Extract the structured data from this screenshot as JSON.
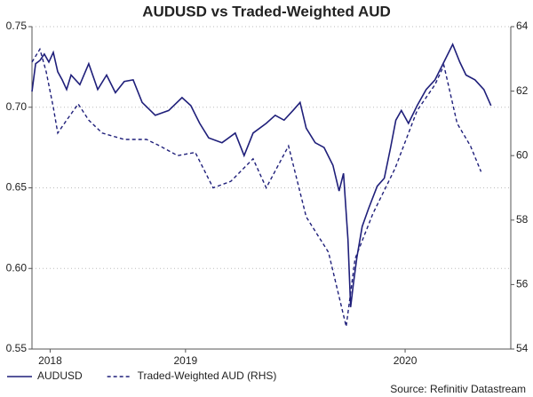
{
  "chart_data": {
    "type": "line",
    "title": "AUDUSD vs Traded-Weighted AUD",
    "source": "Source: Refinitiv Datastream",
    "xlim": [
      2017.9,
      2020.8
    ],
    "xticks": [
      {
        "value": 2018.01,
        "label": "2018"
      },
      {
        "value": 2018.83,
        "label": "2019"
      },
      {
        "value": 2020.16,
        "label": "2020"
      }
    ],
    "ylim": [
      0.55,
      0.75
    ],
    "yticks": [
      0.55,
      {
        "value": 0.6,
        "label": "0.60"
      },
      0.65,
      {
        "value": 0.7,
        "label": "0.70"
      },
      0.75
    ],
    "y2lim": [
      54,
      64
    ],
    "y2ticks": [
      54,
      56,
      58,
      60,
      62,
      64
    ],
    "grid": true,
    "legend": "bottom",
    "series": [
      {
        "name": "AUDUSD",
        "color": "#1f1f7a",
        "dash": false,
        "x": [
          2017.9,
          2017.922,
          2017.948,
          2017.975,
          2018.002,
          2018.029,
          2018.056,
          2018.083,
          2018.11,
          2018.137,
          2018.19,
          2018.244,
          2018.298,
          2018.352,
          2018.405,
          2018.459,
          2018.513,
          2018.567,
          2018.647,
          2018.728,
          2018.809,
          2018.862,
          2018.916,
          2018.97,
          2019.051,
          2019.131,
          2019.185,
          2019.239,
          2019.319,
          2019.373,
          2019.427,
          2019.481,
          2019.524,
          2019.561,
          2019.615,
          2019.669,
          2019.723,
          2019.76,
          2019.787,
          2019.814,
          2019.83,
          2019.846,
          2019.868,
          2019.9,
          2019.938,
          2019.991,
          2020.034,
          2020.072,
          2020.104,
          2020.137,
          2020.18,
          2020.233,
          2020.287,
          2020.341,
          2020.395,
          2020.448,
          2020.491,
          2020.529,
          2020.583,
          2020.637,
          2020.68
        ],
        "values": [
          0.7097,
          0.727,
          0.729,
          0.733,
          0.728,
          0.734,
          0.722,
          0.717,
          0.711,
          0.72,
          0.714,
          0.727,
          0.711,
          0.72,
          0.709,
          0.716,
          0.717,
          0.703,
          0.695,
          0.698,
          0.706,
          0.701,
          0.69,
          0.681,
          0.678,
          0.684,
          0.67,
          0.684,
          0.69,
          0.695,
          0.692,
          0.698,
          0.703,
          0.687,
          0.678,
          0.675,
          0.664,
          0.648,
          0.659,
          0.618,
          0.576,
          0.59,
          0.607,
          0.626,
          0.637,
          0.651,
          0.656,
          0.675,
          0.692,
          0.698,
          0.69,
          0.701,
          0.711,
          0.717,
          0.728,
          0.739,
          0.728,
          0.72,
          0.717,
          0.711,
          0.701
        ]
      },
      {
        "name": "Traded-Weighted AUD (RHS)",
        "color": "#1f1f7a",
        "dash": true,
        "axis": "y2",
        "x": [
          2017.9,
          2017.948,
          2017.986,
          2018.029,
          2018.056,
          2018.11,
          2018.18,
          2018.244,
          2018.325,
          2018.459,
          2018.594,
          2018.674,
          2018.782,
          2018.889,
          2018.997,
          2019.104,
          2019.239,
          2019.319,
          2019.454,
          2019.561,
          2019.696,
          2019.803,
          2019.857,
          2019.965,
          2020.099,
          2020.233,
          2020.341,
          2020.395,
          2020.475,
          2020.556,
          2020.62
        ],
        "values": [
          62.9,
          63.3,
          62.6,
          61.5,
          60.7,
          61.1,
          61.6,
          61.1,
          60.7,
          60.5,
          60.5,
          60.3,
          60.0,
          60.1,
          59.0,
          59.2,
          59.9,
          59.0,
          60.3,
          58.1,
          57.0,
          54.7,
          56.8,
          58.2,
          59.6,
          61.4,
          62.2,
          62.8,
          61.0,
          60.3,
          59.5
        ]
      }
    ]
  }
}
